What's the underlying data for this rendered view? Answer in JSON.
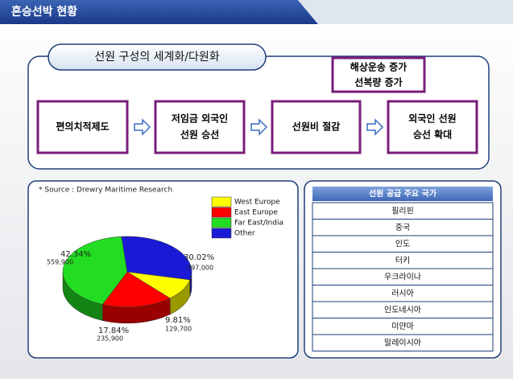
{
  "header": {
    "title": "혼승선박 현황"
  },
  "flow": {
    "title": "선원 구성의 세계화/다원화",
    "top_box": [
      "해상운송 증가",
      "선복량 증가"
    ],
    "steps": [
      [
        "편의치적제도"
      ],
      [
        "저임금 외국인",
        "선원 승선"
      ],
      [
        "선원비 절감"
      ],
      [
        "외국인 선원",
        "승선 확대"
      ]
    ]
  },
  "chart_data": {
    "type": "pie",
    "source": "* Source : Drewry Maritime Research",
    "categories": [
      "West Europe",
      "East Europe",
      "Far East/India",
      "Other"
    ],
    "values": [
      9.81,
      17.84,
      42.34,
      30.02
    ],
    "value_labels": [
      "9.81%",
      "17.84%",
      "42.34%",
      "30.02%"
    ],
    "counts": [
      129700,
      235900,
      559900,
      397000
    ],
    "count_labels": [
      "129,700",
      "235,900",
      "559,900",
      "397,000"
    ],
    "colors": [
      "#ffff00",
      "#ff0000",
      "#22dd22",
      "#1a1ad6"
    ]
  },
  "table": {
    "header": "선원 공급 주요 국가",
    "rows": [
      "필리핀",
      "중국",
      "인도",
      "터키",
      "우크라이나",
      "러시아",
      "인도네시아",
      "미얀마",
      "말레이시아"
    ]
  }
}
